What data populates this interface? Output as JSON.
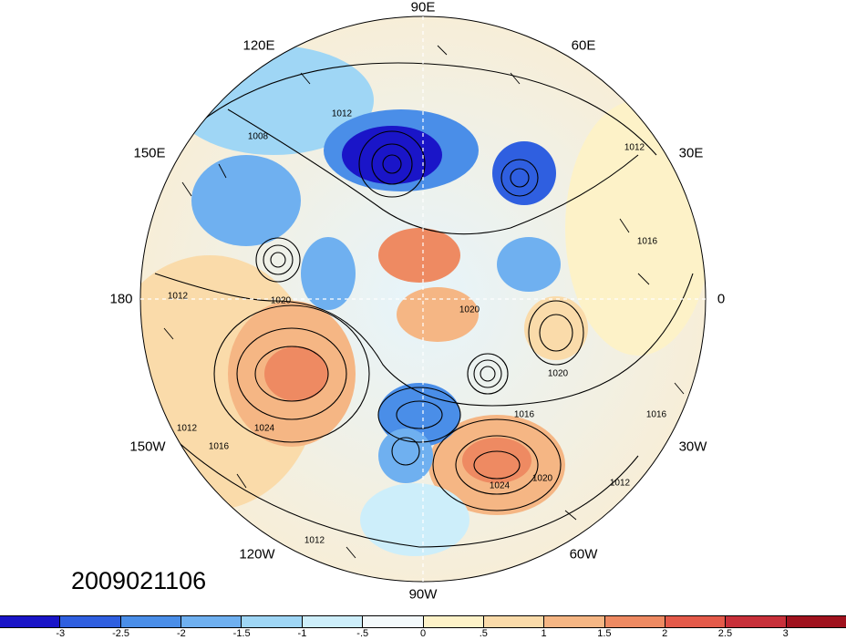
{
  "timestamp": "2009021106",
  "longitude_labels": [
    {
      "name": "90E",
      "text": "90E"
    },
    {
      "name": "60E",
      "text": "60E"
    },
    {
      "name": "30E",
      "text": "30E"
    },
    {
      "name": "0",
      "text": "0"
    },
    {
      "name": "30W",
      "text": "30W"
    },
    {
      "name": "60W",
      "text": "60W"
    },
    {
      "name": "90W",
      "text": "90W"
    },
    {
      "name": "120W",
      "text": "120W"
    },
    {
      "name": "150W",
      "text": "150W"
    },
    {
      "name": "180",
      "text": "180"
    },
    {
      "name": "150E",
      "text": "150E"
    },
    {
      "name": "120E",
      "text": "120E"
    }
  ],
  "contour_labels": [
    "1008",
    "1012",
    "1012",
    "1016",
    "1020",
    "1020",
    "1024",
    "1016",
    "1012",
    "1020",
    "1024",
    "1012",
    "1016",
    "1012",
    "1020",
    "1016",
    "1012"
  ],
  "colorbar": {
    "colors": [
      "#1a15c8",
      "#2f5fe0",
      "#4a8ee8",
      "#6fb0f0",
      "#9fd6f5",
      "#cdeefa",
      "#f3f9fb",
      "#fdf2c8",
      "#fadbaa",
      "#f5b684",
      "#ee8a62",
      "#e45a4a",
      "#c8303a",
      "#a0121e"
    ],
    "ticks": [
      "-3",
      "-2.5",
      "-2",
      "-1.5",
      "-1",
      "-.5",
      "0",
      ".5",
      "1",
      "1.5",
      "2",
      "2.5",
      "3"
    ]
  }
}
